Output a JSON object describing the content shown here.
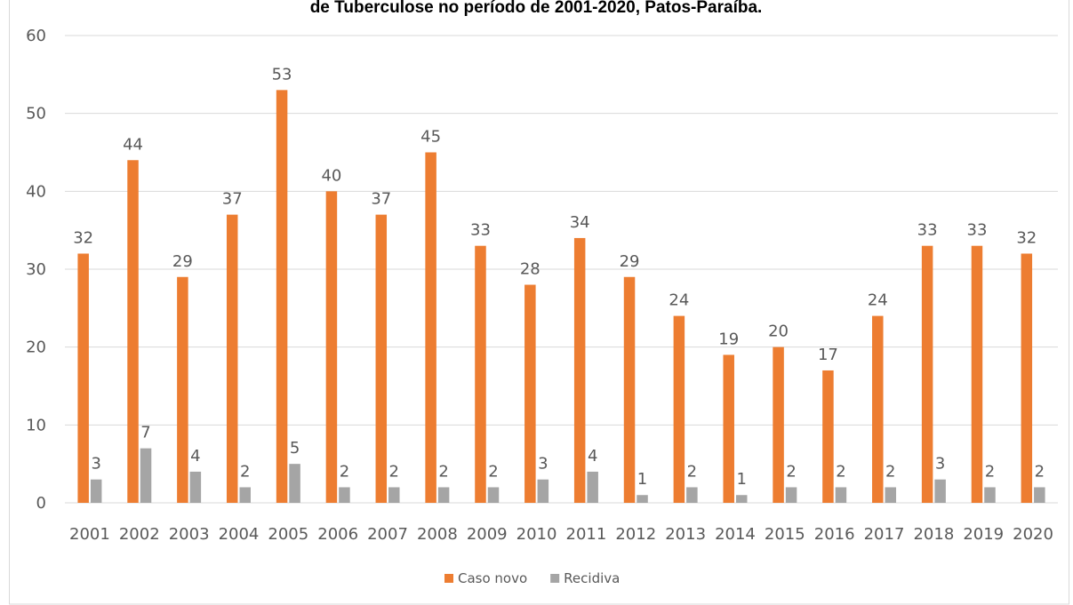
{
  "chart_data": {
    "type": "bar",
    "title": "de Tuberculose no período de 2001-2020, Patos-Paraíba.",
    "categories": [
      "2001",
      "2002",
      "2003",
      "2004",
      "2005",
      "2006",
      "2007",
      "2008",
      "2009",
      "2010",
      "2011",
      "2012",
      "2013",
      "2014",
      "2015",
      "2016",
      "2017",
      "2018",
      "2019",
      "2020"
    ],
    "series": [
      {
        "name": "Caso novo",
        "color": "#ed7d31",
        "values": [
          32,
          44,
          29,
          37,
          53,
          40,
          37,
          45,
          33,
          28,
          34,
          29,
          24,
          19,
          20,
          17,
          24,
          33,
          33,
          32
        ]
      },
      {
        "name": "Recidiva",
        "color": "#a5a5a5",
        "values": [
          3,
          7,
          4,
          2,
          5,
          2,
          2,
          2,
          2,
          3,
          4,
          1,
          2,
          1,
          2,
          2,
          2,
          3,
          2,
          2
        ]
      }
    ],
    "ylim": [
      0,
      60
    ],
    "yticks": [
      0,
      10,
      20,
      30,
      40,
      50,
      60
    ],
    "grid": true,
    "legend": "bottom"
  }
}
